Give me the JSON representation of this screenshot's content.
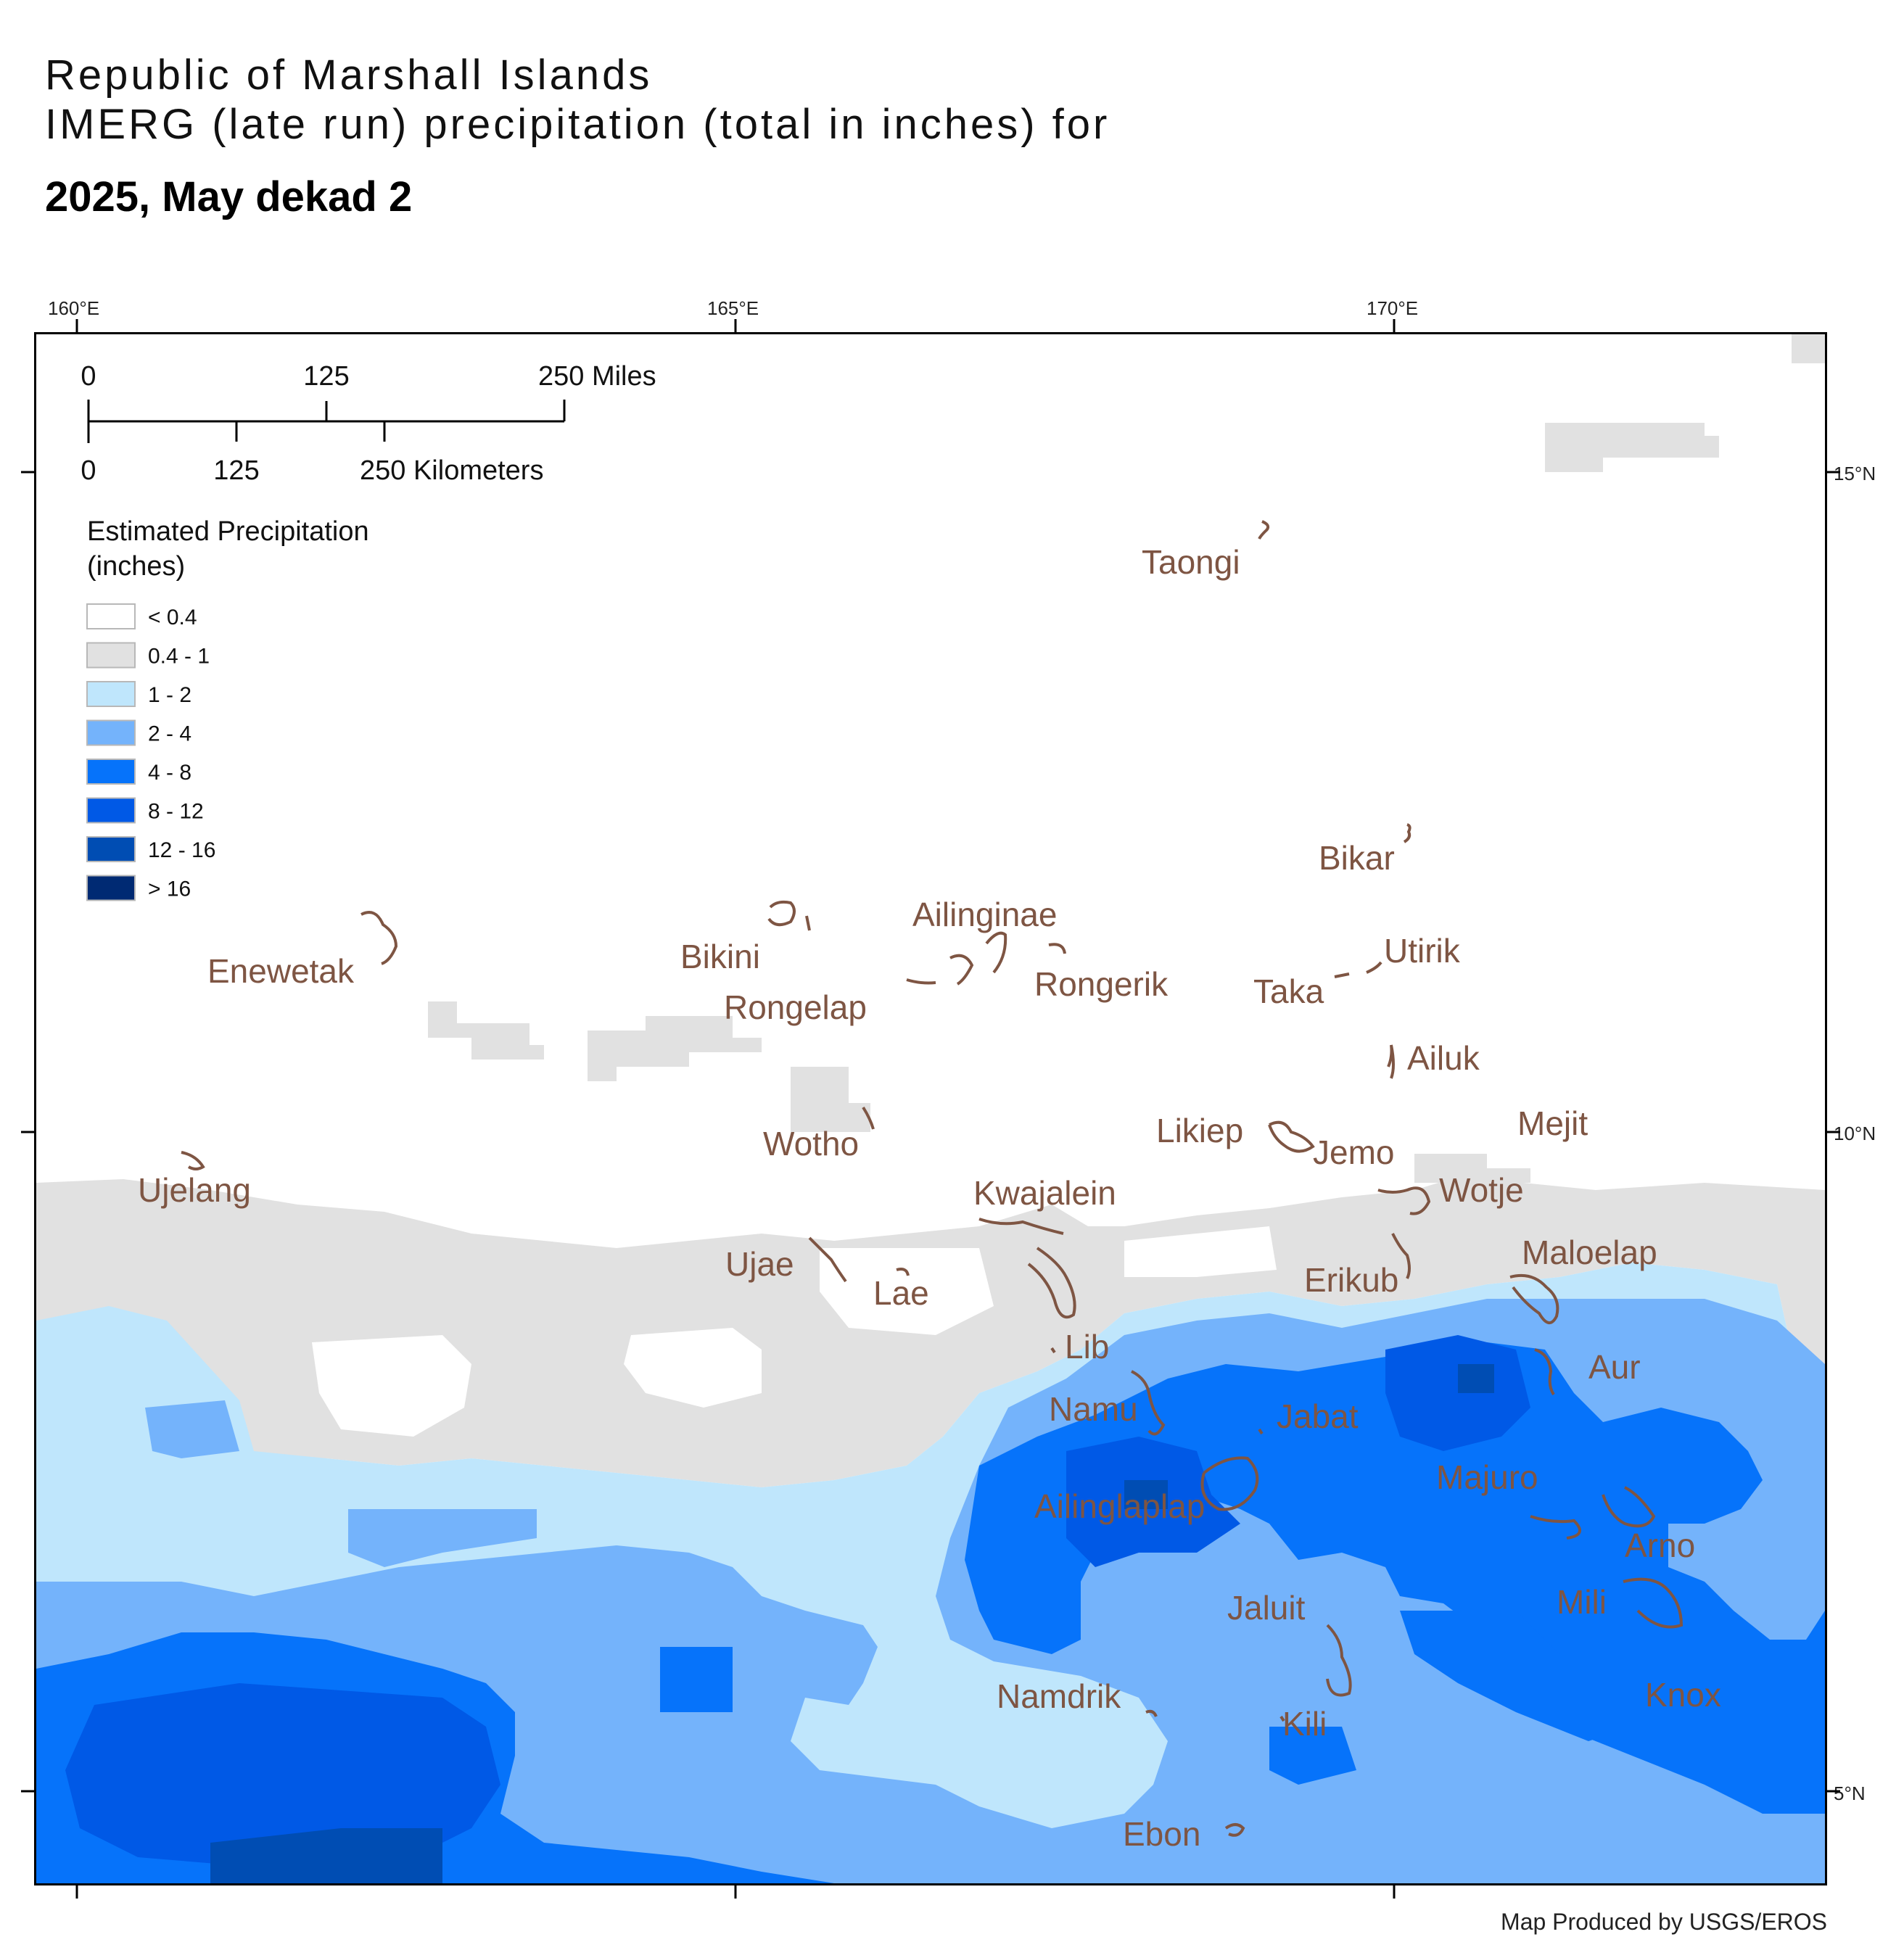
{
  "title": {
    "line1": "Republic of Marshall Islands",
    "line2": "IMERG (late run) precipitation (total in inches) for",
    "line3": "2025, May dekad 2"
  },
  "graticule": {
    "longitudes": [
      "160°E",
      "165°E",
      "170°E"
    ],
    "latitudes": [
      "15°N",
      "10°N",
      "5°N"
    ]
  },
  "scale_bar": {
    "miles_ticks": [
      "0",
      "125",
      "250 Miles"
    ],
    "km_ticks": [
      "0",
      "125",
      "250 Kilometers"
    ]
  },
  "legend": {
    "title_line1": "Estimated Precipitation",
    "title_line2": "(inches)",
    "classes": [
      {
        "label": "< 0.4",
        "color": "#ffffff"
      },
      {
        "label": "0.4 - 1",
        "color": "#e1e1e1"
      },
      {
        "label": "1 - 2",
        "color": "#bfe6fc"
      },
      {
        "label": "2 - 4",
        "color": "#74b3fb"
      },
      {
        "label": "4 - 8",
        "color": "#0673fa"
      },
      {
        "label": "8 - 12",
        "color": "#0059e6"
      },
      {
        "label": "12 - 16",
        "color": "#004db3"
      },
      {
        "label": "> 16",
        "color": "#002a73"
      }
    ]
  },
  "islands": [
    "Taongi",
    "Bikar",
    "Utirik",
    "Taka",
    "Ailuk",
    "Mejit",
    "Likiep",
    "Jemo",
    "Wotje",
    "Erikub",
    "Maloelap",
    "Aur",
    "Majuro",
    "Arno",
    "Mili",
    "Knox",
    "Jaluit",
    "Kili",
    "Ebon",
    "Namdrik",
    "Ailinglaplap",
    "Jabat",
    "Namu",
    "Lib",
    "Kwajalein",
    "Lae",
    "Ujae",
    "Wotho",
    "Rongelap",
    "Bikini",
    "Ailinginae",
    "Rongerik",
    "Enewetak",
    "Ujelang"
  ],
  "credit": "Map Produced by USGS/EROS"
}
